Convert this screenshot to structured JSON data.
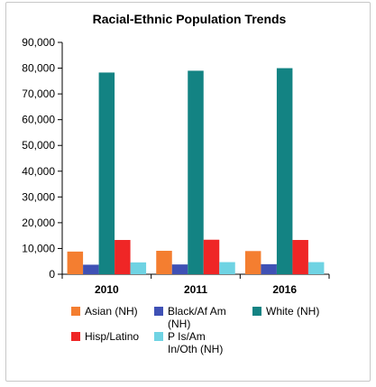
{
  "chart_data": {
    "type": "bar",
    "title": "Racial-Ethnic Population Trends",
    "categories": [
      "2010",
      "2011",
      "2016"
    ],
    "ylim": [
      0,
      90000
    ],
    "yticks": [
      "0",
      "10,000",
      "20,000",
      "30,000",
      "40,000",
      "50,000",
      "60,000",
      "70,000",
      "80,000",
      "90,000"
    ],
    "ytick_values": [
      0,
      10000,
      20000,
      30000,
      40000,
      50000,
      60000,
      70000,
      80000,
      90000
    ],
    "grid": false,
    "legend_position": "bottom",
    "series": [
      {
        "name": "Asian (NH)",
        "color": "#f47e30",
        "values": [
          8800,
          9100,
          9000
        ]
      },
      {
        "name": "Black/Af Am (NH)",
        "color": "#3f51b5",
        "values": [
          3700,
          3800,
          3900
        ]
      },
      {
        "name": "White (NH)",
        "color": "#138383",
        "values": [
          78300,
          79000,
          80000
        ]
      },
      {
        "name": "Hisp/Latino",
        "color": "#ef2626",
        "values": [
          13300,
          13400,
          13300
        ]
      },
      {
        "name": "P Is/Am In/Oth (NH)",
        "color": "#6fd3e3",
        "values": [
          4600,
          4700,
          4700
        ]
      }
    ],
    "legend_lines": [
      [
        "Asian (NH)"
      ],
      [
        "Black/Af Am",
        "(NH)"
      ],
      [
        "White (NH)"
      ],
      [
        "Hisp/Latino"
      ],
      [
        "P Is/Am",
        "In/Oth (NH)"
      ]
    ]
  }
}
